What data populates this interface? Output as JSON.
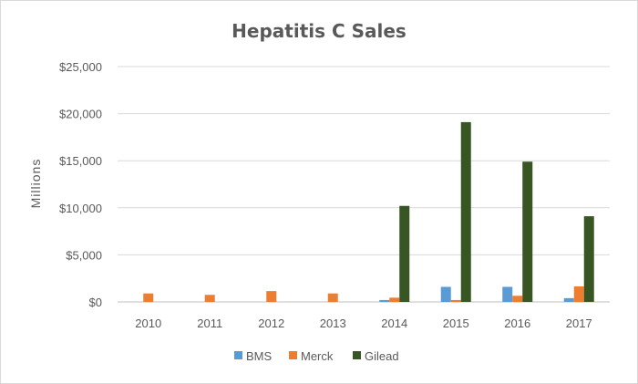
{
  "chart_data": {
    "type": "bar",
    "title": "Hepatitis C Sales",
    "xlabel": "",
    "ylabel": "Millions",
    "categories": [
      "2010",
      "2011",
      "2012",
      "2013",
      "2014",
      "2015",
      "2016",
      "2017"
    ],
    "series": [
      {
        "name": "BMS",
        "color": "#5b9bd5",
        "values": [
          0,
          0,
          0,
          0,
          200,
          1600,
          1600,
          400
        ]
      },
      {
        "name": "Merck",
        "color": "#ed7d31",
        "values": [
          900,
          750,
          1150,
          900,
          450,
          200,
          650,
          1650
        ]
      },
      {
        "name": "Gilead",
        "color": "#375623",
        "values": [
          0,
          0,
          0,
          0,
          10200,
          19100,
          14900,
          9100
        ]
      }
    ],
    "ylim": [
      0,
      25000
    ],
    "yticks": [
      0,
      5000,
      10000,
      15000,
      20000,
      25000
    ],
    "ytick_labels": [
      "$0",
      "$5,000",
      "$10,000",
      "$15,000",
      "$20,000",
      "$25,000"
    ],
    "grid": true,
    "legend_position": "bottom"
  }
}
